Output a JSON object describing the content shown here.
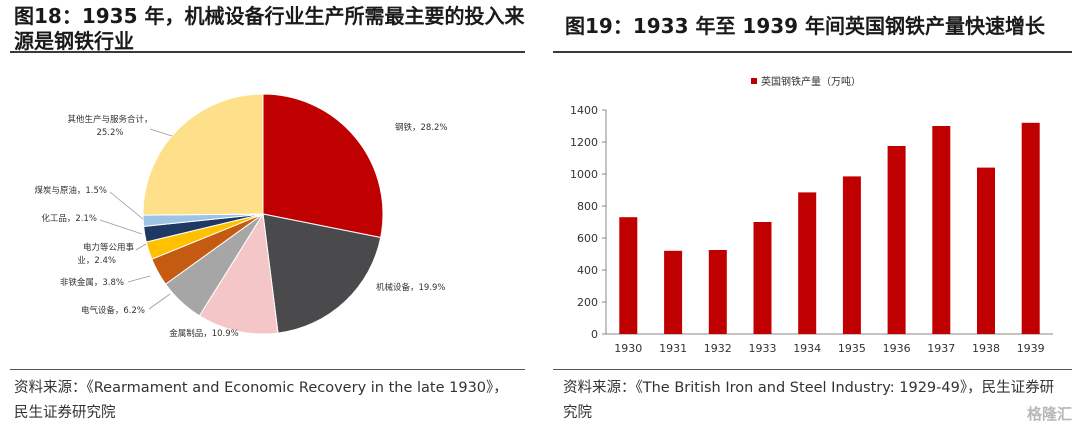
{
  "left": {
    "title": "图18：1935 年，机械设备行业生产所需最主要的投入来源是钢铁行业",
    "source": "资料来源：《Rearmament and Economic Recovery in the late 1930》，民生证券研究院"
  },
  "right": {
    "title": "图19：1933 年至 1939 年间英国钢铁产量快速增长",
    "source": "资料来源：《The British Iron and Steel Industry: 1929-49》，民生证券研究院"
  },
  "watermark": "格隆汇",
  "chart_data": [
    {
      "type": "pie",
      "slices": [
        {
          "label": "钢铁",
          "value": 28.2,
          "color": "#c00000",
          "text": "钢铁，28.2%"
        },
        {
          "label": "机械设备",
          "value": 19.9,
          "color": "#4a4a4c",
          "text": "机械设备，19.9%"
        },
        {
          "label": "金属制品",
          "value": 10.9,
          "color": "#f4c6c8",
          "text": "金属制品，10.9%"
        },
        {
          "label": "电气设备",
          "value": 6.2,
          "color": "#a6a6a6",
          "text": "电气设备，6.2%"
        },
        {
          "label": "非铁金属",
          "value": 3.8,
          "color": "#c55a11",
          "text": "非铁金属，3.8%"
        },
        {
          "label": "电力等公用事业",
          "value": 2.4,
          "color": "#ffc000",
          "text": "电力等公用事业，2.4%"
        },
        {
          "label": "化工品",
          "value": 2.1,
          "color": "#1f3864",
          "text": "化工品，2.1%"
        },
        {
          "label": "煤炭与原油",
          "value": 1.5,
          "color": "#9dc3e6",
          "text": "煤炭与原油，1.5%"
        },
        {
          "label": "其他生产与服务合计",
          "value": 25.2,
          "color": "#ffe08a",
          "text": "其他生产与服务合计，25.2%"
        }
      ]
    },
    {
      "type": "bar",
      "categories": [
        "1930",
        "1931",
        "1932",
        "1933",
        "1934",
        "1935",
        "1936",
        "1937",
        "1938",
        "1939"
      ],
      "series": [
        {
          "name": "英国钢铁产量（万吨）",
          "values": [
            730,
            520,
            525,
            700,
            885,
            985,
            1175,
            1300,
            1040,
            1320
          ],
          "color": "#c00000"
        }
      ],
      "ylim": [
        0,
        1400
      ],
      "yticks": [
        "0",
        "200",
        "400",
        "600",
        "800",
        "1000",
        "1200",
        "1400"
      ],
      "legend_position": "top-center",
      "grid": false
    }
  ]
}
